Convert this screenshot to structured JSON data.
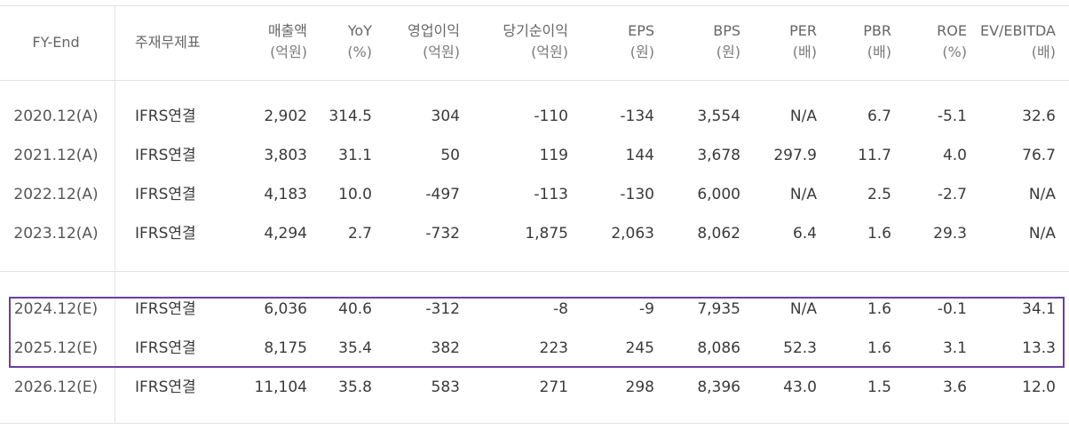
{
  "table": {
    "headers": [
      {
        "key": "fy",
        "l1": "FY-End",
        "l2": ""
      },
      {
        "key": "type",
        "l1": "주재무제표",
        "l2": ""
      },
      {
        "key": "sales",
        "l1": "매출액",
        "l2": "(억원)"
      },
      {
        "key": "yoy",
        "l1": "YoY",
        "l2": "(%)"
      },
      {
        "key": "op",
        "l1": "영업이익",
        "l2": "(억원)"
      },
      {
        "key": "net",
        "l1": "당기순이익",
        "l2": "(억원)"
      },
      {
        "key": "eps",
        "l1": "EPS",
        "l2": "(원)"
      },
      {
        "key": "bps",
        "l1": "BPS",
        "l2": "(원)"
      },
      {
        "key": "per",
        "l1": "PER",
        "l2": "(배)"
      },
      {
        "key": "pbr",
        "l1": "PBR",
        "l2": "(배)"
      },
      {
        "key": "roe",
        "l1": "ROE",
        "l2": "(%)"
      },
      {
        "key": "ev",
        "l1": "EV/EBITDA",
        "l2": "(배)"
      }
    ],
    "actual_rows": [
      [
        "2020.12(A)",
        "IFRS연결",
        "2,902",
        "314.5",
        "304",
        "-110",
        "-134",
        "3,554",
        "N/A",
        "6.7",
        "-5.1",
        "32.6"
      ],
      [
        "2021.12(A)",
        "IFRS연결",
        "3,803",
        "31.1",
        "50",
        "119",
        "144",
        "3,678",
        "297.9",
        "11.7",
        "4.0",
        "76.7"
      ],
      [
        "2022.12(A)",
        "IFRS연결",
        "4,183",
        "10.0",
        "-497",
        "-113",
        "-130",
        "6,000",
        "N/A",
        "2.5",
        "-2.7",
        "N/A"
      ],
      [
        "2023.12(A)",
        "IFRS연결",
        "4,294",
        "2.7",
        "-732",
        "1,875",
        "2,063",
        "8,062",
        "6.4",
        "1.6",
        "29.3",
        "N/A"
      ]
    ],
    "estimate_rows": [
      [
        "2024.12(E)",
        "IFRS연결",
        "6,036",
        "40.6",
        "-312",
        "-8",
        "-9",
        "7,935",
        "N/A",
        "1.6",
        "-0.1",
        "34.1"
      ],
      [
        "2025.12(E)",
        "IFRS연결",
        "8,175",
        "35.4",
        "382",
        "223",
        "245",
        "8,086",
        "52.3",
        "1.6",
        "3.1",
        "13.3"
      ],
      [
        "2026.12(E)",
        "IFRS연결",
        "11,104",
        "35.8",
        "583",
        "271",
        "298",
        "8,396",
        "43.0",
        "1.5",
        "3.6",
        "12.0"
      ]
    ],
    "highlight_color": "#6b3fa0"
  }
}
